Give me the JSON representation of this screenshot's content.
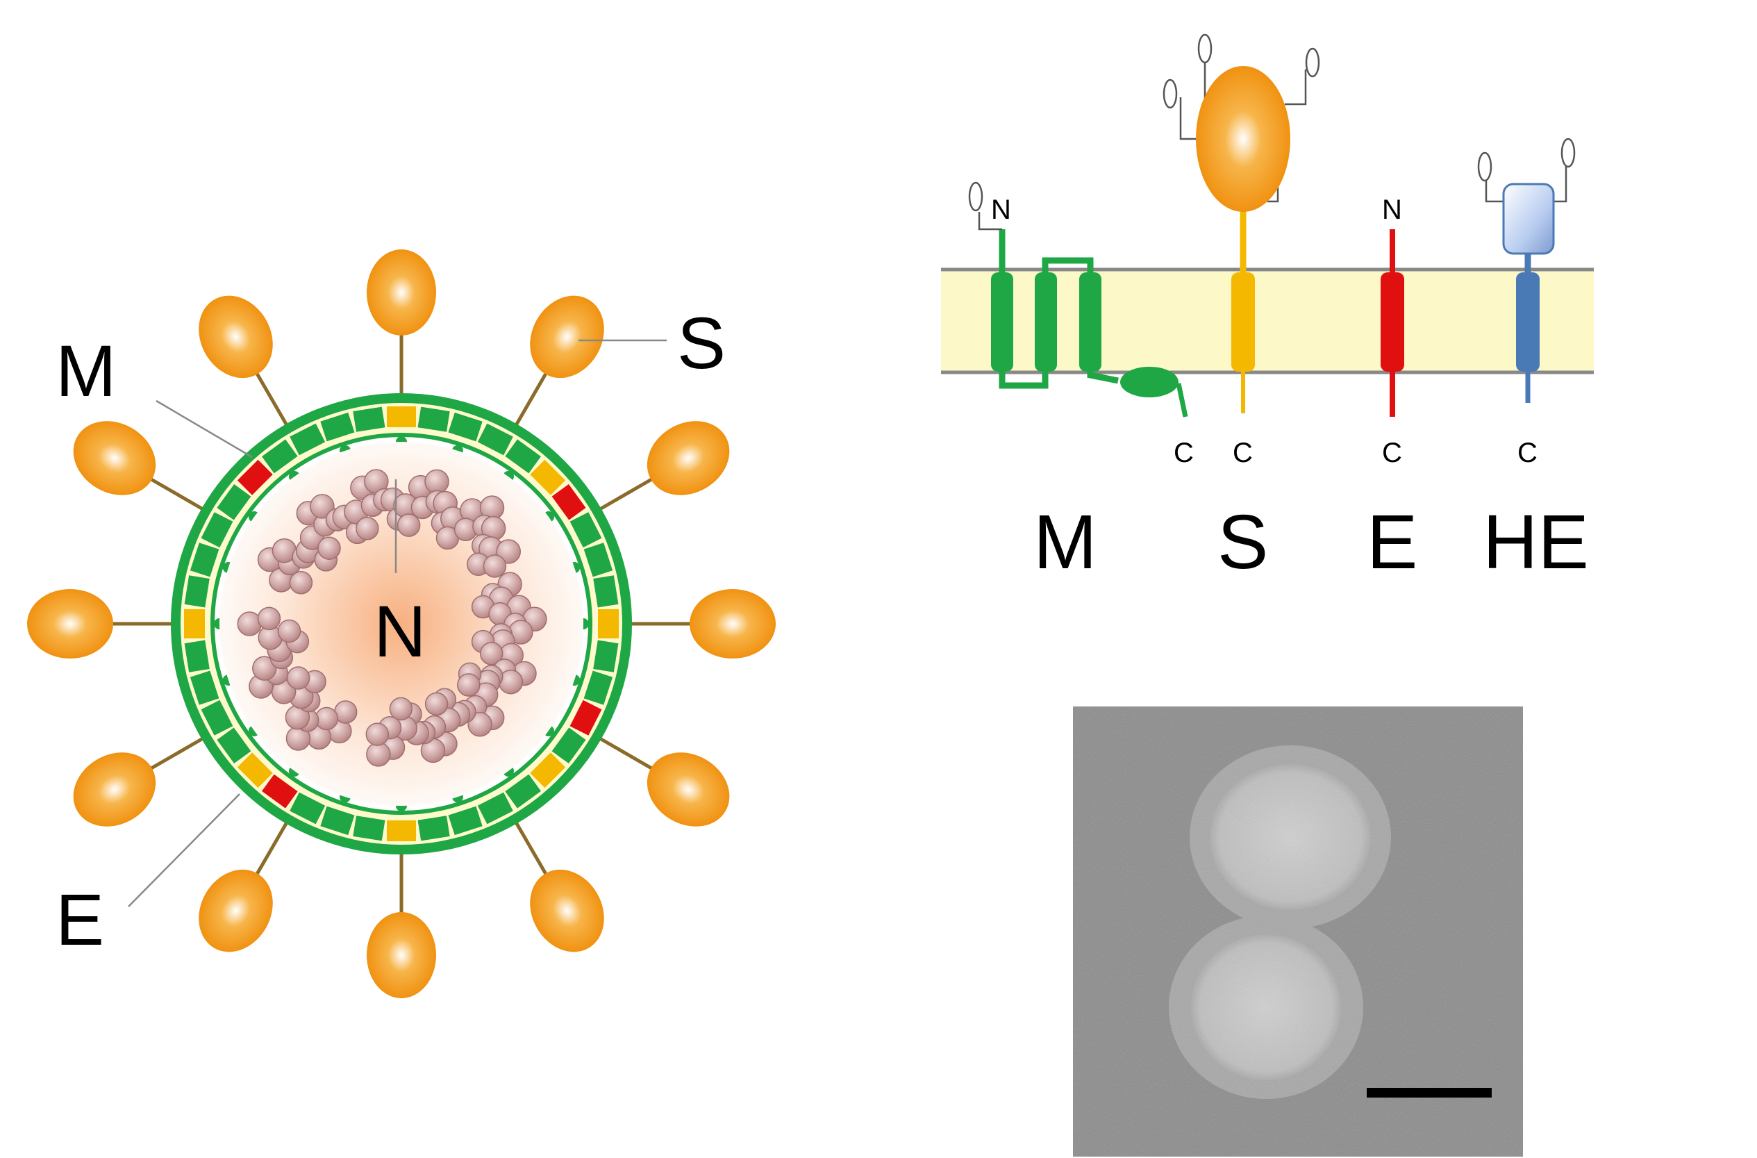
{
  "virion_diagram": {
    "labels": {
      "M": "M",
      "S": "S",
      "N": "N",
      "E": "E"
    },
    "colors": {
      "spike": "#f39c12",
      "membrane_protein": "#1ea744",
      "envelope_protein": "#e01010",
      "nucleocapsid": "#c9a0a0",
      "lipid": "#fffacd"
    }
  },
  "topology_diagram": {
    "proteins": [
      {
        "name": "M",
        "n_label": "N",
        "c_label": "C",
        "color": "#1ea744"
      },
      {
        "name": "S",
        "c_label": "C",
        "color": "#f5b800"
      },
      {
        "name": "E",
        "n_label": "N",
        "c_label": "C",
        "color": "#e01010"
      },
      {
        "name": "HE",
        "c_label": "C",
        "color": "#4a7ab5"
      }
    ],
    "membrane_color": "#fcf8c8"
  },
  "micrograph": {
    "background": "#8a8a8a"
  }
}
